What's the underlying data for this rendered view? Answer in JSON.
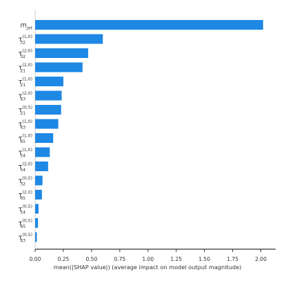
{
  "chart_data": {
    "type": "bar",
    "orientation": "horizontal",
    "categories": [
      {
        "base": "m",
        "sub": "jet",
        "sup": "",
        "italic": true
      },
      {
        "base": "τ",
        "sub": "32",
        "sup": "(1,0)"
      },
      {
        "base": "τ",
        "sub": "32",
        "sup": "(2,0)"
      },
      {
        "base": "τ",
        "sub": "21",
        "sup": "(2,0)"
      },
      {
        "base": "τ",
        "sub": "21",
        "sup": "(1,0)"
      },
      {
        "base": "τ",
        "sub": "43",
        "sup": "(2,0)"
      },
      {
        "base": "τ",
        "sub": "21",
        "sup": "(0,5)"
      },
      {
        "base": "τ",
        "sub": "43",
        "sup": "(1,0)"
      },
      {
        "base": "τ",
        "sub": "65",
        "sup": "(1,0)"
      },
      {
        "base": "τ",
        "sub": "54",
        "sup": "(1,0)"
      },
      {
        "base": "τ",
        "sub": "54",
        "sup": "(2,0)"
      },
      {
        "base": "τ",
        "sub": "32",
        "sup": "(0,5)"
      },
      {
        "base": "τ",
        "sub": "65",
        "sup": "(2,0)"
      },
      {
        "base": "τ",
        "sub": "54",
        "sup": "(0,5)"
      },
      {
        "base": "τ",
        "sub": "65",
        "sup": "(0,5)"
      },
      {
        "base": "τ",
        "sub": "43",
        "sup": "(0,5)"
      }
    ],
    "values": [
      2.02,
      0.6,
      0.47,
      0.42,
      0.25,
      0.235,
      0.23,
      0.205,
      0.16,
      0.13,
      0.115,
      0.065,
      0.06,
      0.03,
      0.025,
      0.015
    ],
    "xlabel": "mean(|SHAP value|) (average impact on model output magnitude)",
    "xticks": [
      "0.00",
      "0.25",
      "0.50",
      "0.75",
      "1.00",
      "1.25",
      "1.50",
      "1.75",
      "2.00"
    ],
    "xlim": [
      0,
      2.15
    ],
    "bar_color": "#1e88e5",
    "grid": false
  }
}
